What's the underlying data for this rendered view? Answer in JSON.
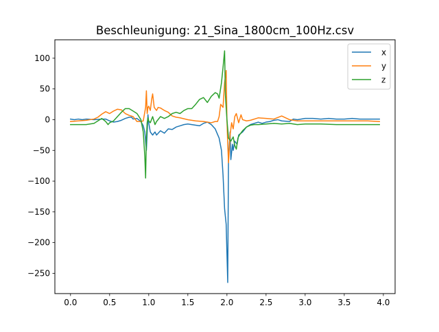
{
  "chart_data": {
    "type": "line",
    "title": "Beschleunigung: 21_Sina_1800cm_100Hz.csv",
    "xlabel": "",
    "ylabel": "",
    "xlim": [
      -0.2,
      4.15
    ],
    "ylim": [
      -283,
      130
    ],
    "xticks": [
      "0.0",
      "0.5",
      "1.0",
      "1.5",
      "2.0",
      "2.5",
      "3.0",
      "3.5",
      "4.0"
    ],
    "xtick_values": [
      0.0,
      0.5,
      1.0,
      1.5,
      2.0,
      2.5,
      3.0,
      3.5,
      4.0
    ],
    "yticks": [
      "100",
      "50",
      "0",
      "−50",
      "−100",
      "−150",
      "−200",
      "−250"
    ],
    "ytick_values": [
      100,
      50,
      0,
      -50,
      -100,
      -150,
      -200,
      -250
    ],
    "grid": false,
    "legend_position": "top-right",
    "series": [
      {
        "name": "x",
        "color": "#1f77b4",
        "points": [
          [
            0.0,
            1
          ],
          [
            0.05,
            0
          ],
          [
            0.1,
            1
          ],
          [
            0.15,
            0
          ],
          [
            0.2,
            1
          ],
          [
            0.3,
            0
          ],
          [
            0.4,
            1
          ],
          [
            0.45,
            1
          ],
          [
            0.5,
            -2
          ],
          [
            0.55,
            -4
          ],
          [
            0.6,
            -3
          ],
          [
            0.65,
            -1
          ],
          [
            0.7,
            2
          ],
          [
            0.75,
            4
          ],
          [
            0.78,
            4
          ],
          [
            0.8,
            1
          ],
          [
            0.85,
            2
          ],
          [
            0.9,
            -3
          ],
          [
            0.93,
            -10
          ],
          [
            0.95,
            -20
          ],
          [
            0.97,
            -50
          ],
          [
            0.99,
            8
          ],
          [
            1.0,
            -5
          ],
          [
            1.02,
            -20
          ],
          [
            1.05,
            -25
          ],
          [
            1.08,
            -20
          ],
          [
            1.1,
            -25
          ],
          [
            1.15,
            -18
          ],
          [
            1.2,
            -22
          ],
          [
            1.25,
            -15
          ],
          [
            1.3,
            -16
          ],
          [
            1.35,
            -12
          ],
          [
            1.4,
            -10
          ],
          [
            1.45,
            -8
          ],
          [
            1.5,
            -7
          ],
          [
            1.55,
            -8
          ],
          [
            1.6,
            -9
          ],
          [
            1.65,
            -10
          ],
          [
            1.7,
            -6
          ],
          [
            1.75,
            -4
          ],
          [
            1.8,
            -8
          ],
          [
            1.85,
            -15
          ],
          [
            1.9,
            -30
          ],
          [
            1.93,
            -50
          ],
          [
            1.95,
            -90
          ],
          [
            1.97,
            -145
          ],
          [
            1.99,
            -170
          ],
          [
            2.01,
            -265
          ],
          [
            2.02,
            -60
          ],
          [
            2.04,
            -20
          ],
          [
            2.05,
            -65
          ],
          [
            2.07,
            -40
          ],
          [
            2.08,
            -50
          ],
          [
            2.1,
            -35
          ],
          [
            2.13,
            -40
          ],
          [
            2.15,
            -25
          ],
          [
            2.2,
            -20
          ],
          [
            2.25,
            -12
          ],
          [
            2.3,
            -8
          ],
          [
            2.35,
            -6
          ],
          [
            2.4,
            -4
          ],
          [
            2.45,
            -6
          ],
          [
            2.5,
            -4
          ],
          [
            2.55,
            -3
          ],
          [
            2.6,
            -1
          ],
          [
            2.65,
            0
          ],
          [
            2.7,
            -2
          ],
          [
            2.8,
            -3
          ],
          [
            2.85,
            1
          ],
          [
            2.9,
            0
          ],
          [
            3.0,
            2
          ],
          [
            3.1,
            2
          ],
          [
            3.2,
            1
          ],
          [
            3.3,
            2
          ],
          [
            3.4,
            1
          ],
          [
            3.5,
            1
          ],
          [
            3.6,
            2
          ],
          [
            3.7,
            1
          ],
          [
            3.8,
            1
          ],
          [
            3.9,
            1
          ],
          [
            3.95,
            1
          ]
        ]
      },
      {
        "name": "y",
        "color": "#ff7f0e",
        "points": [
          [
            0.0,
            -3
          ],
          [
            0.1,
            -2
          ],
          [
            0.2,
            -1
          ],
          [
            0.3,
            1
          ],
          [
            0.35,
            4
          ],
          [
            0.4,
            9
          ],
          [
            0.45,
            13
          ],
          [
            0.5,
            10
          ],
          [
            0.55,
            14
          ],
          [
            0.6,
            17
          ],
          [
            0.65,
            16
          ],
          [
            0.7,
            10
          ],
          [
            0.75,
            7
          ],
          [
            0.8,
            5
          ],
          [
            0.85,
            -3
          ],
          [
            0.9,
            -3
          ],
          [
            0.93,
            -2
          ],
          [
            0.96,
            20
          ],
          [
            0.97,
            47
          ],
          [
            0.98,
            10
          ],
          [
            0.99,
            20
          ],
          [
            1.0,
            22
          ],
          [
            1.02,
            15
          ],
          [
            1.04,
            35
          ],
          [
            1.05,
            42
          ],
          [
            1.07,
            20
          ],
          [
            1.1,
            15
          ],
          [
            1.12,
            20
          ],
          [
            1.15,
            19
          ],
          [
            1.2,
            15
          ],
          [
            1.25,
            12
          ],
          [
            1.3,
            6
          ],
          [
            1.35,
            4
          ],
          [
            1.4,
            3
          ],
          [
            1.5,
            0
          ],
          [
            1.6,
            -2
          ],
          [
            1.7,
            -3
          ],
          [
            1.8,
            -5
          ],
          [
            1.85,
            -3
          ],
          [
            1.88,
            -3
          ],
          [
            1.9,
            5
          ],
          [
            1.92,
            25
          ],
          [
            1.95,
            20
          ],
          [
            1.97,
            60
          ],
          [
            1.99,
            80
          ],
          [
            2.0,
            0
          ],
          [
            2.01,
            -40
          ],
          [
            2.02,
            -70
          ],
          [
            2.04,
            -25
          ],
          [
            2.06,
            -5
          ],
          [
            2.08,
            -15
          ],
          [
            2.1,
            5
          ],
          [
            2.12,
            10
          ],
          [
            2.15,
            -5
          ],
          [
            2.18,
            8
          ],
          [
            2.2,
            0
          ],
          [
            2.25,
            -2
          ],
          [
            2.3,
            -1
          ],
          [
            2.4,
            3
          ],
          [
            2.5,
            2
          ],
          [
            2.6,
            1
          ],
          [
            2.7,
            6
          ],
          [
            2.8,
            0
          ],
          [
            2.9,
            -2
          ],
          [
            3.0,
            -2
          ],
          [
            3.2,
            -2
          ],
          [
            3.4,
            -2
          ],
          [
            3.6,
            -2
          ],
          [
            3.8,
            -2
          ],
          [
            3.95,
            -3
          ]
        ]
      },
      {
        "name": "z",
        "color": "#2ca02c",
        "points": [
          [
            0.0,
            -8
          ],
          [
            0.1,
            -8
          ],
          [
            0.2,
            -8
          ],
          [
            0.3,
            -6
          ],
          [
            0.35,
            -2
          ],
          [
            0.4,
            2
          ],
          [
            0.45,
            -3
          ],
          [
            0.48,
            -8
          ],
          [
            0.5,
            -5
          ],
          [
            0.55,
            -2
          ],
          [
            0.6,
            5
          ],
          [
            0.65,
            12
          ],
          [
            0.7,
            18
          ],
          [
            0.75,
            18
          ],
          [
            0.8,
            14
          ],
          [
            0.85,
            10
          ],
          [
            0.9,
            0
          ],
          [
            0.93,
            -20
          ],
          [
            0.95,
            -60
          ],
          [
            0.96,
            -95
          ],
          [
            0.97,
            -30
          ],
          [
            0.98,
            -5
          ],
          [
            0.99,
            3
          ],
          [
            1.0,
            -2
          ],
          [
            1.02,
            -5
          ],
          [
            1.05,
            5
          ],
          [
            1.08,
            -8
          ],
          [
            1.1,
            -3
          ],
          [
            1.15,
            5
          ],
          [
            1.2,
            2
          ],
          [
            1.25,
            5
          ],
          [
            1.3,
            10
          ],
          [
            1.35,
            12
          ],
          [
            1.4,
            10
          ],
          [
            1.45,
            15
          ],
          [
            1.5,
            18
          ],
          [
            1.55,
            18
          ],
          [
            1.6,
            25
          ],
          [
            1.65,
            33
          ],
          [
            1.7,
            36
          ],
          [
            1.75,
            28
          ],
          [
            1.8,
            38
          ],
          [
            1.85,
            44
          ],
          [
            1.88,
            42
          ],
          [
            1.9,
            35
          ],
          [
            1.93,
            60
          ],
          [
            1.95,
            85
          ],
          [
            1.97,
            112
          ],
          [
            1.98,
            40
          ],
          [
            2.0,
            0
          ],
          [
            2.02,
            -30
          ],
          [
            2.05,
            -35
          ],
          [
            2.08,
            -28
          ],
          [
            2.1,
            -42
          ],
          [
            2.12,
            -48
          ],
          [
            2.14,
            -30
          ],
          [
            2.16,
            -25
          ],
          [
            2.2,
            -18
          ],
          [
            2.25,
            -12
          ],
          [
            2.3,
            -9
          ],
          [
            2.35,
            -8
          ],
          [
            2.4,
            -8
          ],
          [
            2.5,
            -7
          ],
          [
            2.6,
            -6
          ],
          [
            2.7,
            -7
          ],
          [
            2.8,
            -6
          ],
          [
            2.9,
            -8
          ],
          [
            3.0,
            -7
          ],
          [
            3.2,
            -7
          ],
          [
            3.4,
            -8
          ],
          [
            3.6,
            -8
          ],
          [
            3.8,
            -8
          ],
          [
            3.95,
            -8
          ]
        ]
      }
    ]
  }
}
